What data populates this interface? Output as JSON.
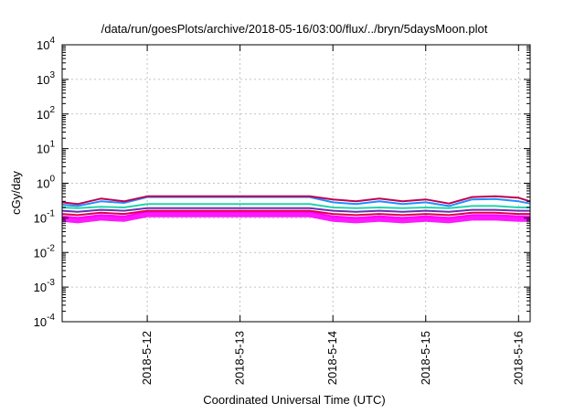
{
  "chart_data": {
    "type": "line",
    "title": "/data/run/goesPlots/archive/2018-05-16/03:00/flux/../bryn/5daysMoon.plot",
    "xlabel": "Coordinated Universal Time (UTC)",
    "ylabel": "cGy/day",
    "x_range": [
      "2018-05-11 02:00",
      "2018-05-16 03:00"
    ],
    "ylim": [
      0.0001,
      10000
    ],
    "yscale": "log",
    "grid": true,
    "x_ticks": [
      {
        "date": "2018-05-12",
        "label": "2018-5-12"
      },
      {
        "date": "2018-05-13",
        "label": "2018-5-13"
      },
      {
        "date": "2018-05-14",
        "label": "2018-5-14"
      },
      {
        "date": "2018-05-15",
        "label": "2018-5-15"
      },
      {
        "date": "2018-05-16",
        "label": "2018-5-16"
      }
    ],
    "y_ticks": [
      {
        "value": 0.0001,
        "base": "10",
        "exp": "-4"
      },
      {
        "value": 0.001,
        "base": "10",
        "exp": "-3"
      },
      {
        "value": 0.01,
        "base": "10",
        "exp": "-2"
      },
      {
        "value": 0.1,
        "base": "10",
        "exp": "-1"
      },
      {
        "value": 1,
        "base": "10",
        "exp": "0"
      },
      {
        "value": 10,
        "base": "10",
        "exp": "1"
      },
      {
        "value": 100,
        "base": "10",
        "exp": "2"
      },
      {
        "value": 1000,
        "base": "10",
        "exp": "3"
      },
      {
        "value": 10000,
        "base": "10",
        "exp": "4"
      }
    ],
    "series": [
      {
        "color": "#ff00ff",
        "fill": true,
        "x": [
          "2018-05-11 02:00",
          "2018-05-11 06:00",
          "2018-05-11 12:00",
          "2018-05-11 18:00",
          "2018-05-12 00:00",
          "2018-05-12 12:00",
          "2018-05-13 00:00",
          "2018-05-13 12:00",
          "2018-05-13 18:00",
          "2018-05-14 00:00",
          "2018-05-14 06:00",
          "2018-05-14 12:00",
          "2018-05-14 18:00",
          "2018-05-15 00:00",
          "2018-05-15 06:00",
          "2018-05-15 12:00",
          "2018-05-15 18:00",
          "2018-05-16 00:00",
          "2018-05-16 03:00"
        ],
        "y": [
          0.11,
          0.1,
          0.12,
          0.11,
          0.15,
          0.15,
          0.15,
          0.15,
          0.15,
          0.11,
          0.1,
          0.11,
          0.1,
          0.11,
          0.1,
          0.12,
          0.12,
          0.11,
          0.11
        ]
      },
      {
        "color": "#e0004a",
        "x": [
          "2018-05-11 02:00",
          "2018-05-11 06:00",
          "2018-05-11 12:00",
          "2018-05-11 18:00",
          "2018-05-12 00:00",
          "2018-05-12 12:00",
          "2018-05-13 00:00",
          "2018-05-13 12:00",
          "2018-05-13 18:00",
          "2018-05-14 00:00",
          "2018-05-14 06:00",
          "2018-05-14 12:00",
          "2018-05-14 18:00",
          "2018-05-15 00:00",
          "2018-05-15 06:00",
          "2018-05-15 12:00",
          "2018-05-15 18:00",
          "2018-05-16 00:00",
          "2018-05-16 03:00"
        ],
        "y": [
          0.13,
          0.12,
          0.14,
          0.13,
          0.16,
          0.16,
          0.16,
          0.16,
          0.16,
          0.13,
          0.12,
          0.13,
          0.12,
          0.13,
          0.12,
          0.14,
          0.14,
          0.13,
          0.13
        ]
      },
      {
        "color": "#6b2fb3",
        "x": [
          "2018-05-11 02:00",
          "2018-05-11 06:00",
          "2018-05-11 12:00",
          "2018-05-11 18:00",
          "2018-05-12 00:00",
          "2018-05-12 12:00",
          "2018-05-13 00:00",
          "2018-05-13 12:00",
          "2018-05-13 18:00",
          "2018-05-14 00:00",
          "2018-05-14 06:00",
          "2018-05-14 12:00",
          "2018-05-14 18:00",
          "2018-05-15 00:00",
          "2018-05-15 06:00",
          "2018-05-15 12:00",
          "2018-05-15 18:00",
          "2018-05-16 00:00",
          "2018-05-16 03:00"
        ],
        "y": [
          0.16,
          0.15,
          0.17,
          0.16,
          0.19,
          0.19,
          0.19,
          0.19,
          0.19,
          0.16,
          0.15,
          0.16,
          0.15,
          0.16,
          0.15,
          0.17,
          0.17,
          0.16,
          0.16
        ]
      },
      {
        "color": "#22d3a8",
        "x": [
          "2018-05-11 02:00",
          "2018-05-11 06:00",
          "2018-05-11 12:00",
          "2018-05-11 18:00",
          "2018-05-12 00:00",
          "2018-05-12 12:00",
          "2018-05-13 00:00",
          "2018-05-13 12:00",
          "2018-05-13 18:00",
          "2018-05-14 00:00",
          "2018-05-14 06:00",
          "2018-05-14 12:00",
          "2018-05-14 18:00",
          "2018-05-15 00:00",
          "2018-05-15 06:00",
          "2018-05-15 12:00",
          "2018-05-15 18:00",
          "2018-05-16 00:00",
          "2018-05-16 03:00"
        ],
        "y": [
          0.2,
          0.19,
          0.21,
          0.2,
          0.25,
          0.25,
          0.25,
          0.25,
          0.25,
          0.2,
          0.19,
          0.2,
          0.19,
          0.2,
          0.19,
          0.22,
          0.22,
          0.2,
          0.2
        ]
      },
      {
        "color": "#1e90ff",
        "x": [
          "2018-05-11 02:00",
          "2018-05-11 06:00",
          "2018-05-11 12:00",
          "2018-05-11 18:00",
          "2018-05-12 00:00",
          "2018-05-12 12:00",
          "2018-05-13 00:00",
          "2018-05-13 12:00",
          "2018-05-13 18:00",
          "2018-05-14 00:00",
          "2018-05-14 06:00",
          "2018-05-14 12:00",
          "2018-05-14 18:00",
          "2018-05-15 00:00",
          "2018-05-15 06:00",
          "2018-05-15 12:00",
          "2018-05-15 18:00",
          "2018-05-16 00:00",
          "2018-05-16 03:00"
        ],
        "y": [
          0.24,
          0.22,
          0.3,
          0.27,
          0.4,
          0.4,
          0.4,
          0.4,
          0.4,
          0.28,
          0.25,
          0.3,
          0.25,
          0.28,
          0.22,
          0.34,
          0.35,
          0.3,
          0.26
        ]
      },
      {
        "color": "#c00050",
        "x": [
          "2018-05-11 02:00",
          "2018-05-11 06:00",
          "2018-05-11 12:00",
          "2018-05-11 18:00",
          "2018-05-12 00:00",
          "2018-05-12 12:00",
          "2018-05-13 00:00",
          "2018-05-13 12:00",
          "2018-05-13 18:00",
          "2018-05-14 00:00",
          "2018-05-14 06:00",
          "2018-05-14 12:00",
          "2018-05-14 18:00",
          "2018-05-15 00:00",
          "2018-05-15 06:00",
          "2018-05-15 12:00",
          "2018-05-15 18:00",
          "2018-05-16 00:00",
          "2018-05-16 03:00"
        ],
        "y": [
          0.28,
          0.25,
          0.36,
          0.3,
          0.42,
          0.42,
          0.42,
          0.42,
          0.42,
          0.34,
          0.3,
          0.36,
          0.3,
          0.34,
          0.26,
          0.4,
          0.42,
          0.38,
          0.3
        ]
      }
    ]
  }
}
